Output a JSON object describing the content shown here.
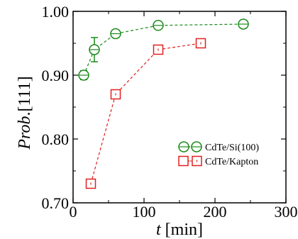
{
  "chart_data": {
    "type": "scatter",
    "xlabel": {
      "var": "t",
      "unit": " [min]"
    },
    "ylabel": {
      "var": "Prob",
      "suffix": ".[111]"
    },
    "xlim": [
      0,
      300
    ],
    "ylim": [
      0.7,
      1.0
    ],
    "xticks": [
      0,
      100,
      200,
      300
    ],
    "xtick_labels": [
      "0",
      "100",
      "200",
      "300"
    ],
    "yticks": [
      0.7,
      0.8,
      0.9,
      1.0
    ],
    "ytick_labels": [
      "0.70",
      "0.80",
      "0.90",
      "1.00"
    ],
    "grid": false,
    "legend_position": "lower-right",
    "series": [
      {
        "name": "CdTe/Si(100)",
        "marker": "circle",
        "color": "#1a8a1a",
        "line": "dashed",
        "points": [
          {
            "x": 15,
            "y": 0.9,
            "err": 0.007
          },
          {
            "x": 30,
            "y": 0.94,
            "err": 0.019
          },
          {
            "x": 60,
            "y": 0.965,
            "err": 0.005
          },
          {
            "x": 120,
            "y": 0.978,
            "err": 0.003
          },
          {
            "x": 240,
            "y": 0.98,
            "err": 0.004
          }
        ]
      },
      {
        "name": "CdTe/Kapton",
        "marker": "square",
        "color": "#e02020",
        "line": "dashed",
        "points": [
          {
            "x": 25,
            "y": 0.73,
            "err": 0.002
          },
          {
            "x": 60,
            "y": 0.87,
            "err": 0.002
          },
          {
            "x": 120,
            "y": 0.94,
            "err": 0.002
          },
          {
            "x": 180,
            "y": 0.95,
            "err": 0.002
          }
        ]
      }
    ]
  }
}
